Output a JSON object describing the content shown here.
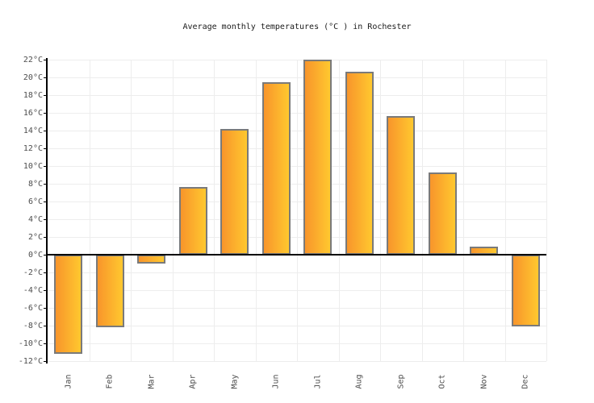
{
  "chart": {
    "title": "Average monthly temperatures (°C ) in Rochester"
  },
  "chart_data": {
    "type": "bar",
    "title": "Average monthly temperatures (°C ) in Rochester",
    "categories": [
      "Jan",
      "Feb",
      "Mar",
      "Apr",
      "May",
      "Jun",
      "Jul",
      "Aug",
      "Sep",
      "Oct",
      "Nov",
      "Dec"
    ],
    "values": [
      -11.2,
      -8.2,
      -1,
      7.6,
      14.2,
      19.5,
      22,
      20.6,
      15.6,
      9.3,
      0.9,
      -8.1
    ],
    "xlabel": "",
    "ylabel": "",
    "ylim": [
      -12,
      22
    ],
    "ytick_step": 2,
    "ytick_suffix": "°C",
    "grid": true,
    "legend": "none",
    "colors": {
      "bar_gradient_left": "#f8952b",
      "bar_gradient_right": "#ffc82f",
      "bar_border": "#7a7a7a",
      "axis": "#000000",
      "gridline": "#ededed",
      "tick_label": "#4d4d4d",
      "title": "#1a1a1a",
      "background": "#ffffff"
    }
  }
}
